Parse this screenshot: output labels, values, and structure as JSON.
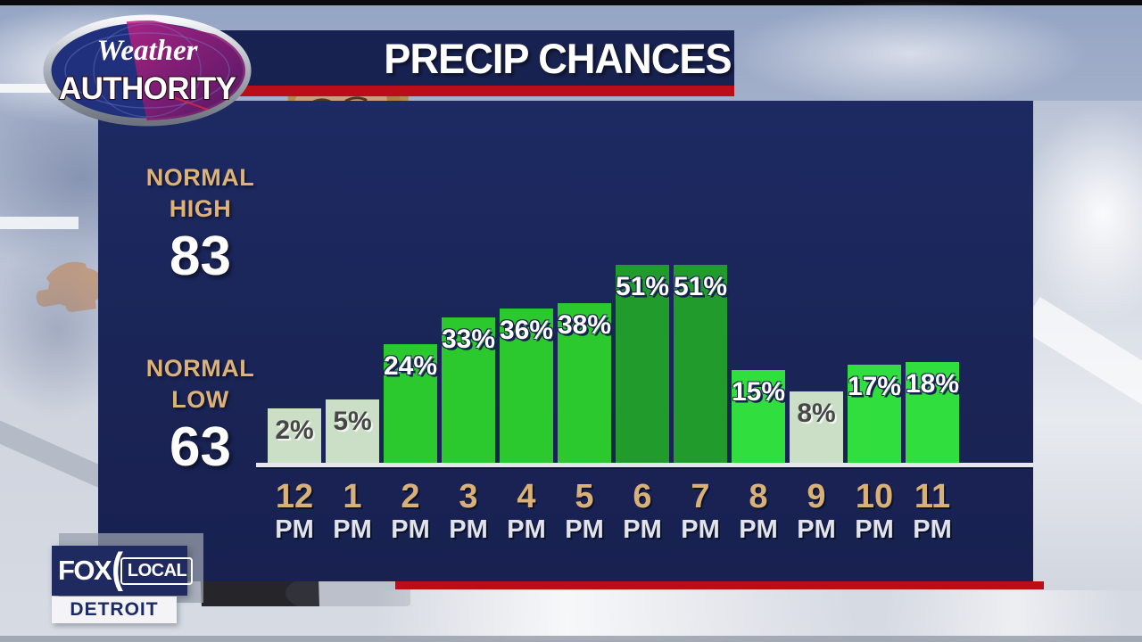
{
  "header": {
    "title": "PRECIP CHANCES"
  },
  "branding": {
    "weather_authority": {
      "line1": "Weather",
      "line2": "AUTHORITY"
    },
    "fox_local": {
      "network": "FOX",
      "paren": "(",
      "sub": "LOCAL",
      "market": "DETROIT"
    }
  },
  "stats": {
    "normal_high": {
      "line1": "NORMAL",
      "line2": "HIGH",
      "value": "83"
    },
    "normal_low": {
      "line1": "NORMAL",
      "line2": "LOW",
      "value": "63"
    }
  },
  "chart_data": {
    "type": "bar",
    "title": "PRECIP CHANCES",
    "categories": [
      "12 PM",
      "1 PM",
      "2 PM",
      "3 PM",
      "4 PM",
      "5 PM",
      "6 PM",
      "7 PM",
      "8 PM",
      "9 PM",
      "10 PM",
      "11 PM"
    ],
    "hours": [
      "12",
      "1",
      "2",
      "3",
      "4",
      "5",
      "6",
      "7",
      "8",
      "9",
      "10",
      "11"
    ],
    "meridiem": "PM",
    "values": [
      2,
      5,
      24,
      33,
      36,
      38,
      51,
      51,
      15,
      8,
      17,
      18
    ],
    "labels": [
      "2%",
      "5%",
      "24%",
      "33%",
      "36%",
      "38%",
      "51%",
      "51%",
      "15%",
      "8%",
      "17%",
      "18%"
    ],
    "unit": "%",
    "ylim": [
      0,
      60
    ],
    "grid": false,
    "legend": false,
    "bar_tiers": [
      "low",
      "low",
      "medium",
      "medium",
      "medium",
      "medium",
      "high",
      "high",
      "medium_light",
      "low",
      "medium_light",
      "medium_light"
    ],
    "tier_colors": {
      "low": "#cbdfc7",
      "medium_light": "#30de3d",
      "medium": "#2bc92d",
      "high": "#219c2c"
    },
    "annotations": [
      {
        "text": "NORMAL HIGH 83"
      },
      {
        "text": "NORMAL LOW 63"
      }
    ]
  },
  "colors": {
    "panel_navy": "#1a2456",
    "banner_navy": "#182250",
    "accent_red": "#bb0c1a",
    "tick_tan": "#d9b176",
    "baseline": "#e6e6ee",
    "label_on_green": "#ffffff",
    "label_on_pale": "#474747",
    "fox_navy": "#1e2a60"
  }
}
